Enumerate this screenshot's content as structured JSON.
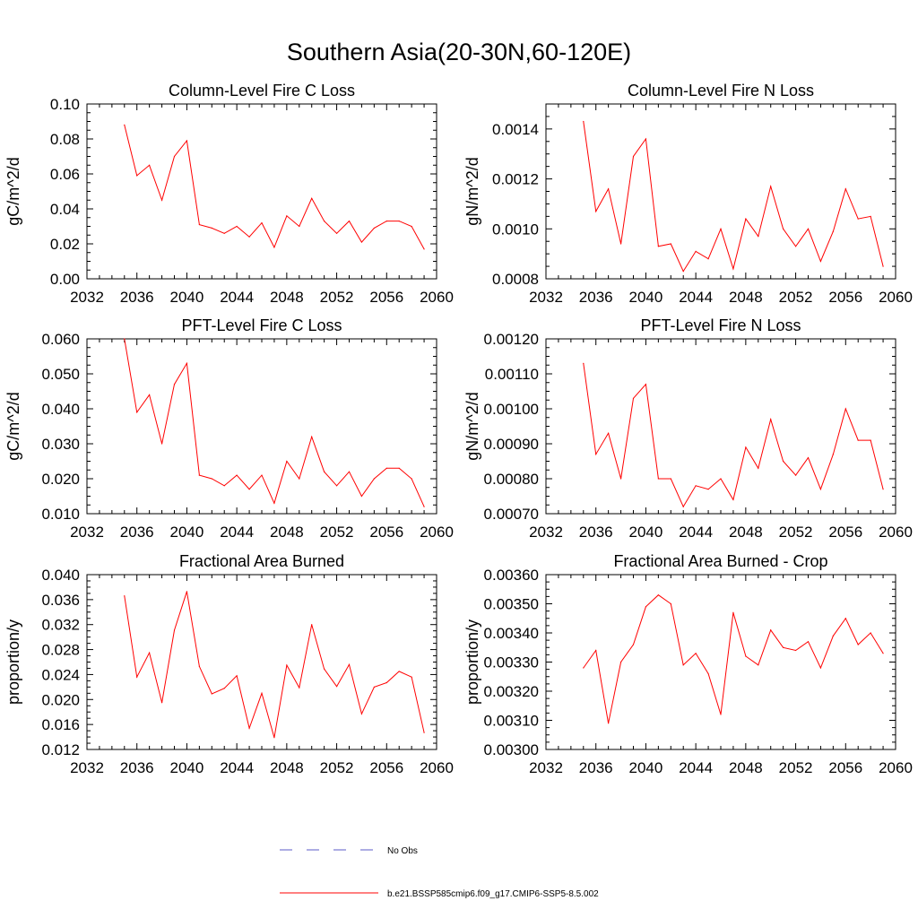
{
  "figure": {
    "title": "Southern Asia(20-30N,60-120E)"
  },
  "legend": {
    "entries": [
      {
        "label": "No Obs",
        "color": "#5b5bc8",
        "style": "dashed"
      },
      {
        "label": "b.e21.BSSP585cmip6.f09_g17.CMIP6-SSP5-8.5.002",
        "color": "#ff0000",
        "style": "solid"
      }
    ]
  },
  "chart_data": [
    {
      "type": "line",
      "title": "Column-Level Fire C Loss",
      "ylabel": "gC/m^2/d",
      "xlim": [
        2032,
        2060
      ],
      "xticks": [
        "2032",
        "2036",
        "2040",
        "2044",
        "2048",
        "2052",
        "2056",
        "2060"
      ],
      "ylim": [
        0.0,
        0.1
      ],
      "yticks": [
        "0.00",
        "0.02",
        "0.04",
        "0.06",
        "0.08",
        "0.10"
      ],
      "series": [
        {
          "color": "#ff0000",
          "x": [
            2035,
            2036,
            2037,
            2038,
            2039,
            2040,
            2041,
            2042,
            2043,
            2044,
            2045,
            2046,
            2047,
            2048,
            2049,
            2050,
            2051,
            2052,
            2053,
            2054,
            2055,
            2056,
            2057,
            2058,
            2059
          ],
          "values": [
            0.088,
            0.059,
            0.065,
            0.045,
            0.07,
            0.079,
            0.031,
            0.029,
            0.026,
            0.03,
            0.024,
            0.032,
            0.018,
            0.036,
            0.03,
            0.046,
            0.033,
            0.026,
            0.033,
            0.021,
            0.029,
            0.033,
            0.033,
            0.03,
            0.017
          ]
        }
      ]
    },
    {
      "type": "line",
      "title": "Column-Level Fire N Loss",
      "ylabel": "gN/m^2/d",
      "xlim": [
        2032,
        2060
      ],
      "xticks": [
        "2032",
        "2036",
        "2040",
        "2044",
        "2048",
        "2052",
        "2056",
        "2060"
      ],
      "ylim": [
        0.0008,
        0.0015
      ],
      "yticks": [
        "0.0008",
        "0.0010",
        "0.0012",
        "0.0014"
      ],
      "series": [
        {
          "color": "#ff0000",
          "x": [
            2035,
            2036,
            2037,
            2038,
            2039,
            2040,
            2041,
            2042,
            2043,
            2044,
            2045,
            2046,
            2047,
            2048,
            2049,
            2050,
            2051,
            2052,
            2053,
            2054,
            2055,
            2056,
            2057,
            2058,
            2059
          ],
          "values": [
            0.00143,
            0.00107,
            0.00116,
            0.00094,
            0.00129,
            0.00136,
            0.00093,
            0.00094,
            0.00083,
            0.00091,
            0.00088,
            0.001,
            0.00084,
            0.00104,
            0.00097,
            0.00117,
            0.001,
            0.00093,
            0.001,
            0.00087,
            0.00099,
            0.00116,
            0.00104,
            0.00105,
            0.00085
          ]
        }
      ]
    },
    {
      "type": "line",
      "title": "PFT-Level Fire C Loss",
      "ylabel": "gC/m^2/d",
      "xlim": [
        2032,
        2060
      ],
      "xticks": [
        "2032",
        "2036",
        "2040",
        "2044",
        "2048",
        "2052",
        "2056",
        "2060"
      ],
      "ylim": [
        0.01,
        0.06
      ],
      "yticks": [
        "0.010",
        "0.020",
        "0.030",
        "0.040",
        "0.050",
        "0.060"
      ],
      "series": [
        {
          "color": "#ff0000",
          "x": [
            2035,
            2036,
            2037,
            2038,
            2039,
            2040,
            2041,
            2042,
            2043,
            2044,
            2045,
            2046,
            2047,
            2048,
            2049,
            2050,
            2051,
            2052,
            2053,
            2054,
            2055,
            2056,
            2057,
            2058,
            2059
          ],
          "values": [
            0.06,
            0.039,
            0.044,
            0.03,
            0.047,
            0.053,
            0.021,
            0.02,
            0.018,
            0.021,
            0.017,
            0.021,
            0.013,
            0.025,
            0.02,
            0.032,
            0.022,
            0.018,
            0.022,
            0.015,
            0.02,
            0.023,
            0.023,
            0.02,
            0.012
          ]
        }
      ]
    },
    {
      "type": "line",
      "title": "PFT-Level Fire N Loss",
      "ylabel": "gN/m^2/d",
      "xlim": [
        2032,
        2060
      ],
      "xticks": [
        "2032",
        "2036",
        "2040",
        "2044",
        "2048",
        "2052",
        "2056",
        "2060"
      ],
      "ylim": [
        0.0007,
        0.0012
      ],
      "yticks": [
        "0.00070",
        "0.00080",
        "0.00090",
        "0.00100",
        "0.00110",
        "0.00120"
      ],
      "series": [
        {
          "color": "#ff0000",
          "x": [
            2035,
            2036,
            2037,
            2038,
            2039,
            2040,
            2041,
            2042,
            2043,
            2044,
            2045,
            2046,
            2047,
            2048,
            2049,
            2050,
            2051,
            2052,
            2053,
            2054,
            2055,
            2056,
            2057,
            2058,
            2059
          ],
          "values": [
            0.00113,
            0.00087,
            0.00093,
            0.0008,
            0.00103,
            0.00107,
            0.0008,
            0.0008,
            0.00072,
            0.00078,
            0.00077,
            0.0008,
            0.00074,
            0.00089,
            0.00083,
            0.00097,
            0.00085,
            0.00081,
            0.00086,
            0.00077,
            0.00087,
            0.001,
            0.00091,
            0.00091,
            0.00077
          ]
        }
      ]
    },
    {
      "type": "line",
      "title": "Fractional Area Burned",
      "ylabel": "proportion/y",
      "xlim": [
        2032,
        2060
      ],
      "xticks": [
        "2032",
        "2036",
        "2040",
        "2044",
        "2048",
        "2052",
        "2056",
        "2060"
      ],
      "ylim": [
        0.012,
        0.04
      ],
      "yticks": [
        "0.012",
        "0.016",
        "0.020",
        "0.024",
        "0.028",
        "0.032",
        "0.036",
        "0.040"
      ],
      "series": [
        {
          "color": "#ff0000",
          "x": [
            2035,
            2036,
            2037,
            2038,
            2039,
            2040,
            2041,
            2042,
            2043,
            2044,
            2045,
            2046,
            2047,
            2048,
            2049,
            2050,
            2051,
            2052,
            2053,
            2054,
            2055,
            2056,
            2057,
            2058,
            2059
          ],
          "values": [
            0.0366,
            0.0236,
            0.0275,
            0.0195,
            0.0311,
            0.0373,
            0.0253,
            0.0209,
            0.0218,
            0.0238,
            0.0154,
            0.021,
            0.0139,
            0.0255,
            0.0219,
            0.032,
            0.0249,
            0.0221,
            0.0256,
            0.0177,
            0.022,
            0.0227,
            0.0245,
            0.0236,
            0.0147
          ]
        }
      ]
    },
    {
      "type": "line",
      "title": "Fractional Area Burned - Crop",
      "ylabel": "proportion/y",
      "xlim": [
        2032,
        2060
      ],
      "xticks": [
        "2032",
        "2036",
        "2040",
        "2044",
        "2048",
        "2052",
        "2056",
        "2060"
      ],
      "ylim": [
        0.003,
        0.0036
      ],
      "yticks": [
        "0.00300",
        "0.00310",
        "0.00320",
        "0.00330",
        "0.00340",
        "0.00350",
        "0.00360"
      ],
      "series": [
        {
          "color": "#ff0000",
          "x": [
            2035,
            2036,
            2037,
            2038,
            2039,
            2040,
            2041,
            2042,
            2043,
            2044,
            2045,
            2046,
            2047,
            2048,
            2049,
            2050,
            2051,
            2052,
            2053,
            2054,
            2055,
            2056,
            2057,
            2058,
            2059
          ],
          "values": [
            0.00328,
            0.00334,
            0.00309,
            0.0033,
            0.00336,
            0.00349,
            0.00353,
            0.0035,
            0.00329,
            0.00333,
            0.00326,
            0.00312,
            0.00347,
            0.00332,
            0.00329,
            0.00341,
            0.00335,
            0.00334,
            0.00337,
            0.00328,
            0.00339,
            0.00345,
            0.00336,
            0.0034,
            0.00333
          ]
        }
      ]
    }
  ]
}
